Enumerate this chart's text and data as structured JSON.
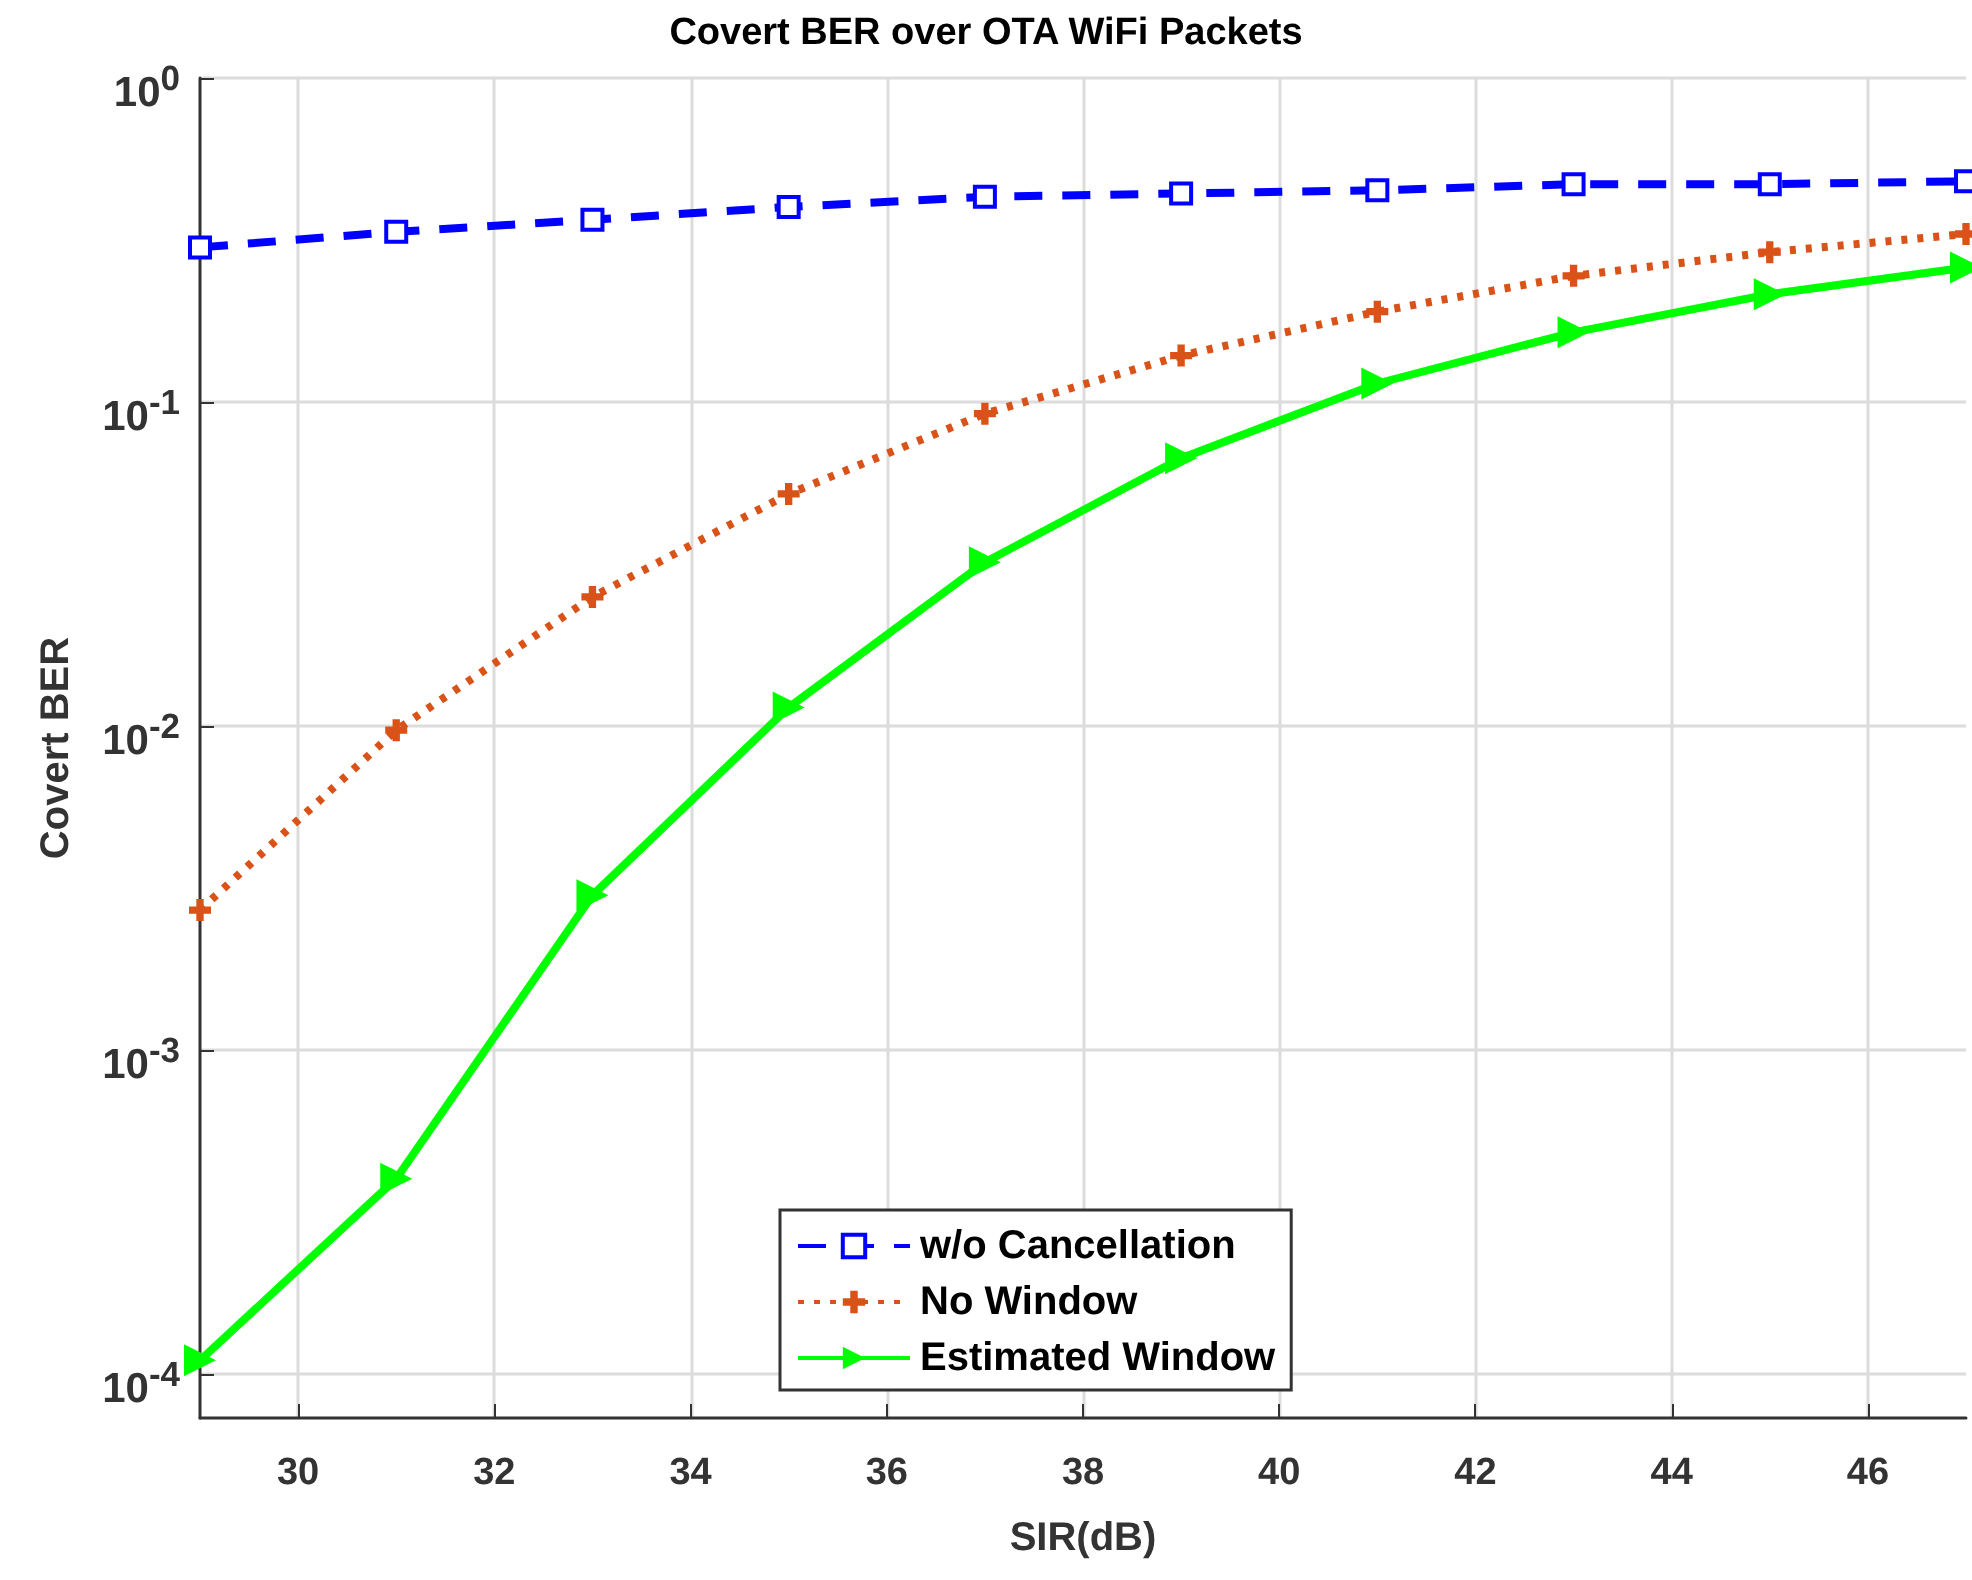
{
  "chart_data": {
    "type": "line",
    "title": "Covert BER over OTA WiFi Packets",
    "xlabel": "SIR(dB)",
    "ylabel": "Covert BER",
    "x": [
      29,
      31,
      33,
      35,
      37,
      39,
      41,
      43,
      45,
      47
    ],
    "series": [
      {
        "name": "w/o Cancellation",
        "color": "#0000ff",
        "marker": "square",
        "line_style": "dashed",
        "values": [
          0.3,
          0.335,
          0.365,
          0.4,
          0.43,
          0.44,
          0.45,
          0.47,
          0.47,
          0.48
        ]
      },
      {
        "name": "No Window",
        "color": "#d95319",
        "marker": "cross",
        "line_style": "dotted",
        "values": [
          0.0027,
          0.0097,
          0.025,
          0.052,
          0.092,
          0.139,
          0.19,
          0.245,
          0.29,
          0.33
        ]
      },
      {
        "name": "Estimated Window",
        "color": "#00ff00",
        "marker": "triangle",
        "line_style": "solid",
        "values": [
          0.00011,
          0.0004,
          0.003,
          0.0114,
          0.032,
          0.067,
          0.114,
          0.164,
          0.215,
          0.26
        ]
      }
    ],
    "xlim": [
      29,
      47
    ],
    "xticks": [
      30,
      32,
      34,
      36,
      38,
      40,
      42,
      44,
      46
    ],
    "ylim": [
      7.3e-05,
      1
    ],
    "yticks": [
      {
        "value": 0.0001,
        "label": "10$^{-4}$"
      },
      {
        "value": 0.001,
        "label": "10$^{-3}$"
      },
      {
        "value": 0.01,
        "label": "10$^{-2}$"
      },
      {
        "value": 0.1,
        "label": "10$^{-1}$"
      },
      {
        "value": 1,
        "label": "10$^{0}$"
      }
    ],
    "log": "y",
    "grid": true,
    "legend": "bottom"
  }
}
